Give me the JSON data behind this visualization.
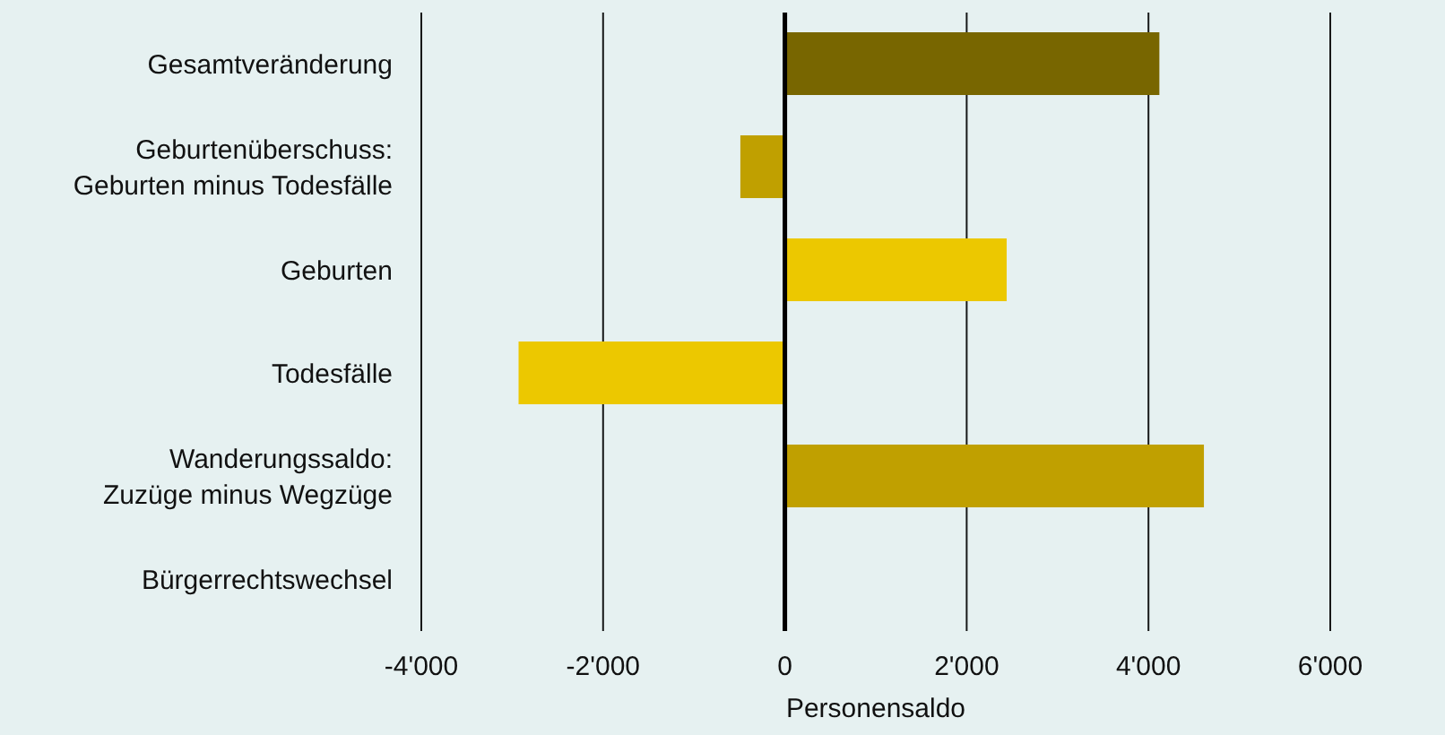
{
  "chart_data": {
    "type": "bar",
    "orientation": "horizontal",
    "xlabel": "Personensaldo",
    "categories": [
      "Gesamtveränderung",
      "Geburtenüberschuss:\nGeburten minus Todesfälle",
      "Geburten",
      "Todesfälle",
      "Wanderungssaldo:\nZuzüge minus Wegzüge",
      "Bürgerrechtswechsel"
    ],
    "values": [
      4120,
      -490,
      2440,
      -2930,
      4610,
      0
    ],
    "colors": [
      "#786600",
      "#c0a000",
      "#ecc800",
      "#ecc800",
      "#c0a000",
      "#c0a000"
    ],
    "xlim": [
      -4000,
      6000
    ],
    "xticks": [
      {
        "value": -4000,
        "label": "-4'000"
      },
      {
        "value": -2000,
        "label": "-2'000"
      },
      {
        "value": 0,
        "label": "0"
      },
      {
        "value": 2000,
        "label": "2'000"
      },
      {
        "value": 4000,
        "label": "4'000"
      },
      {
        "value": 6000,
        "label": "6'000"
      }
    ],
    "grid": "x",
    "ref_lines": [
      {
        "axis": "x",
        "value": 0
      }
    ]
  }
}
